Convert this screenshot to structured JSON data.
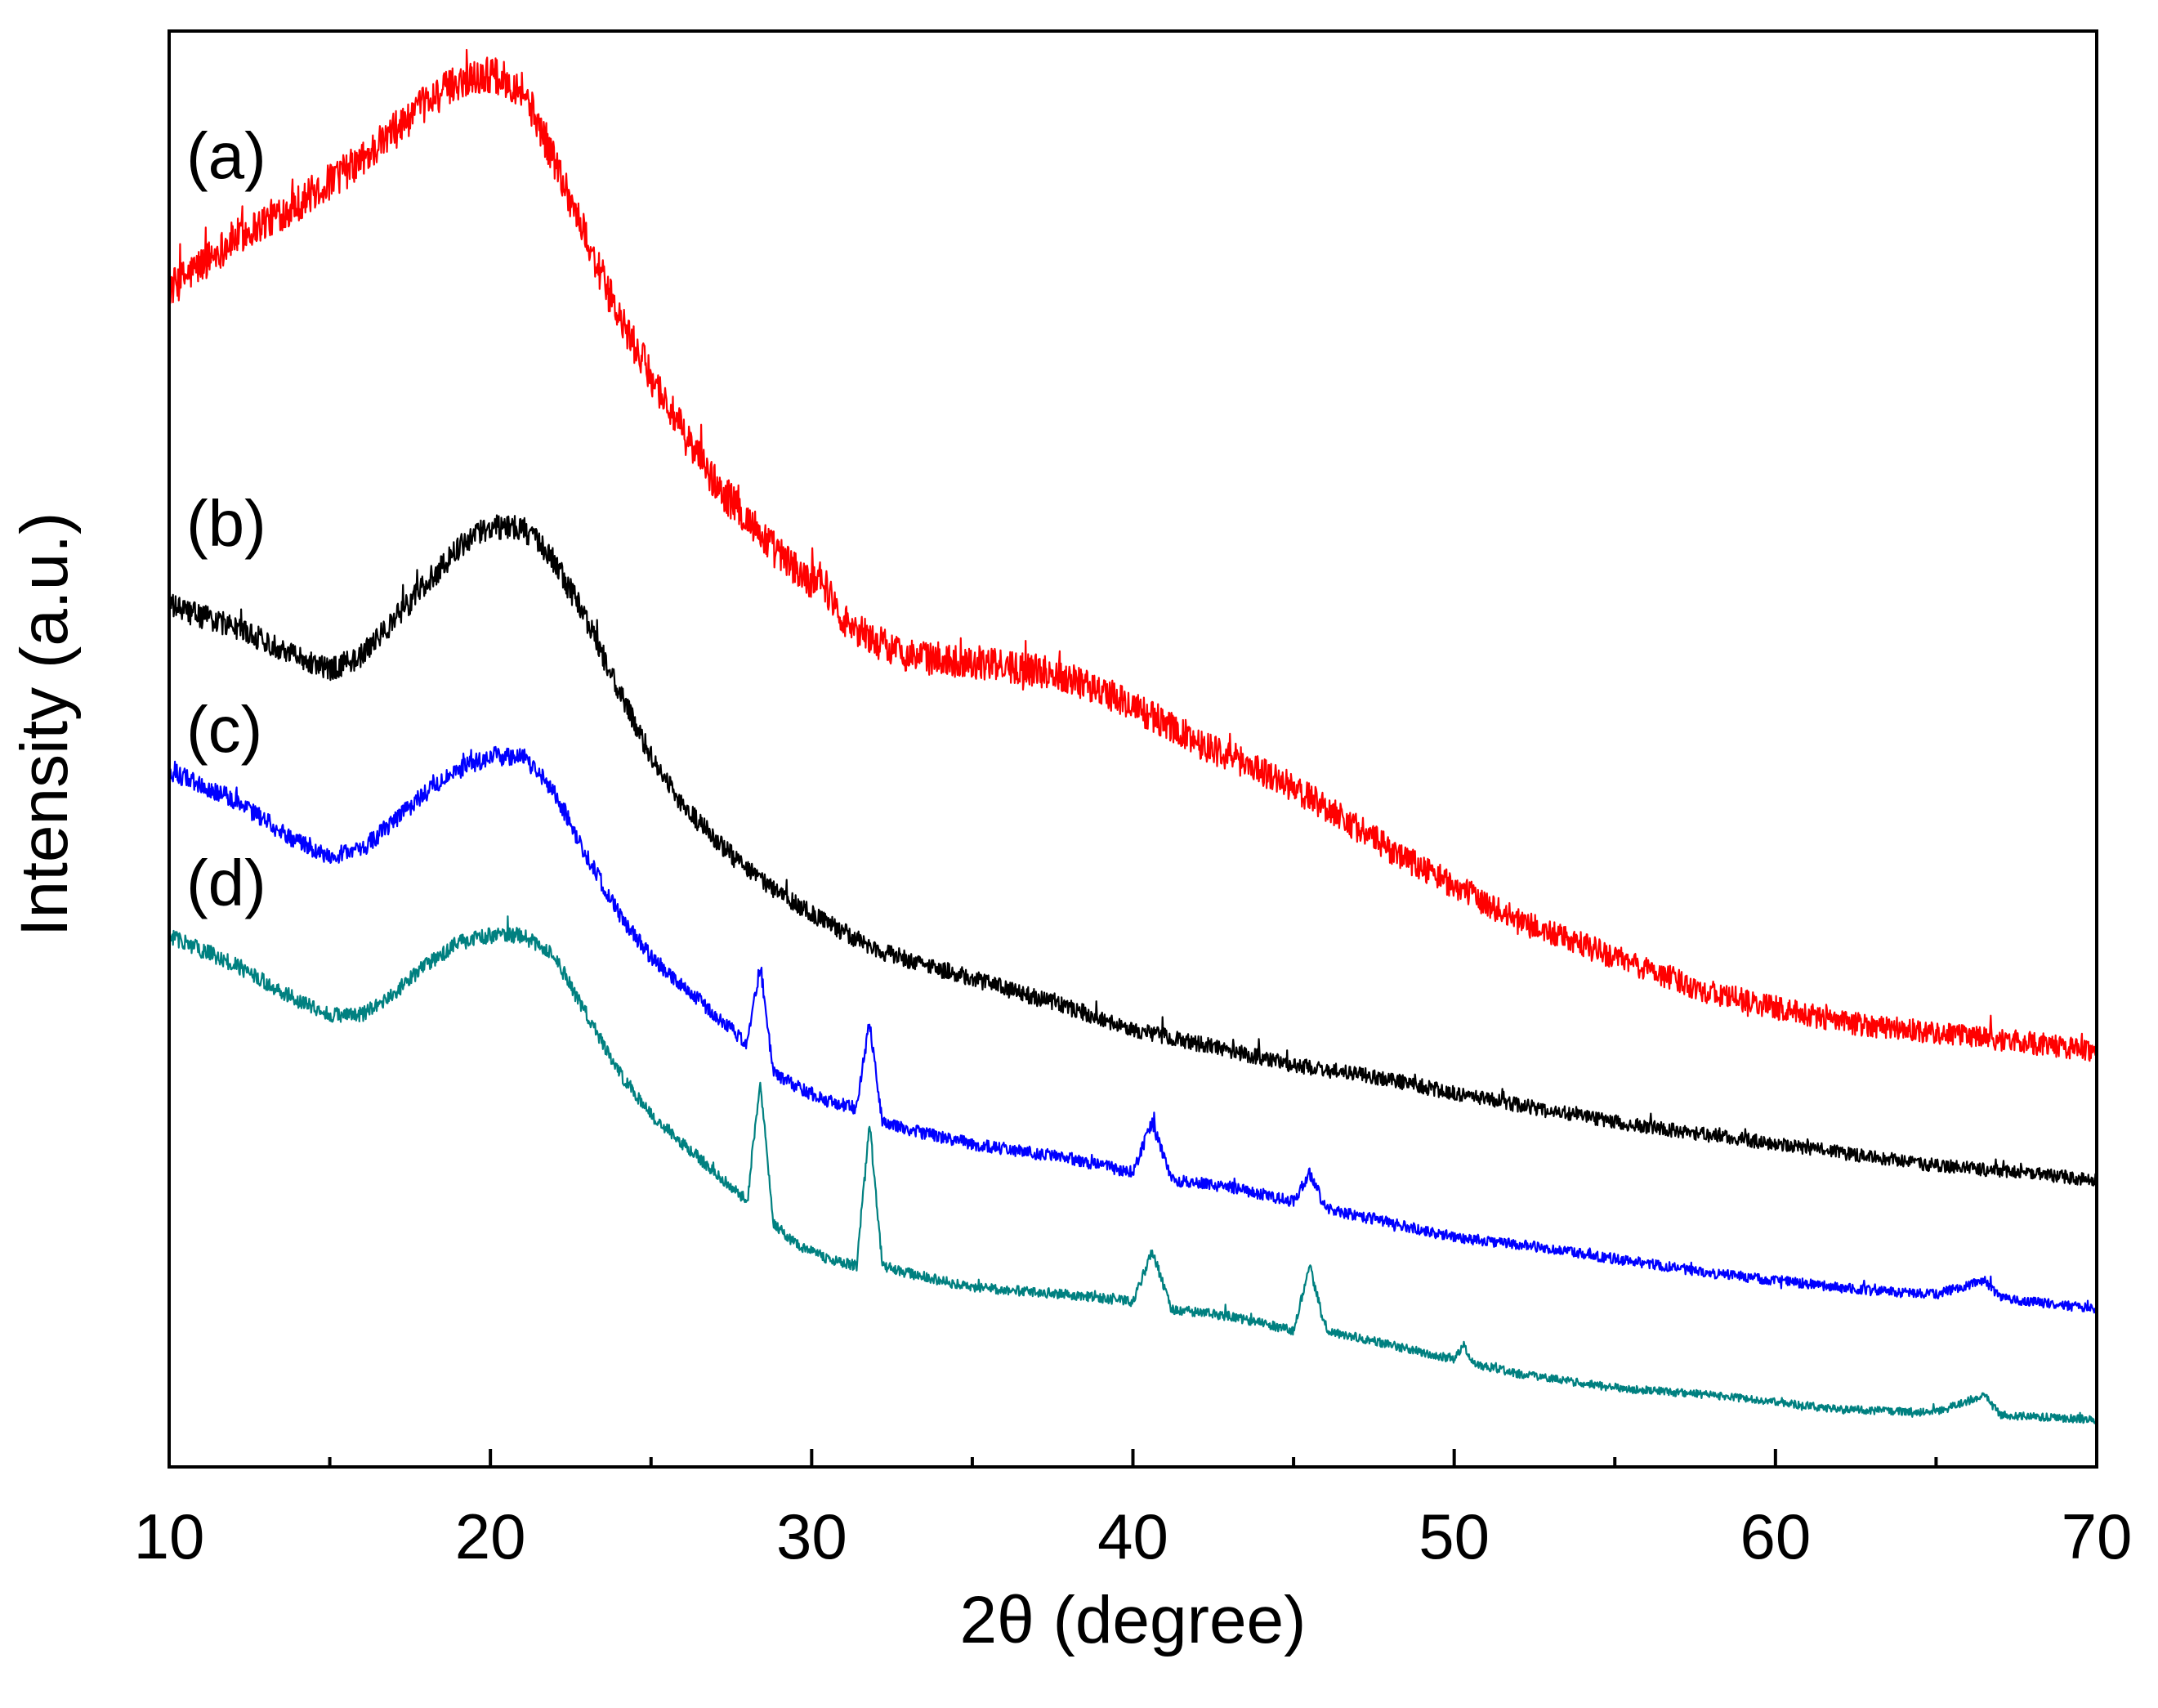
{
  "chart_data": {
    "type": "line",
    "title": "",
    "xlabel": "2θ (degree)",
    "ylabel": "Intensity (a.u.)",
    "xlim": [
      10,
      70
    ],
    "ylim": [
      0,
      100
    ],
    "xticks": [
      10,
      20,
      30,
      40,
      50,
      60,
      70
    ],
    "xtick_labels": [
      "10",
      "20",
      "30",
      "40",
      "50",
      "60",
      "70"
    ],
    "minor_xticks": [
      15,
      25,
      35,
      45,
      55,
      65
    ],
    "yticks_shown": false,
    "grid": false,
    "series": [
      {
        "name": "(a)",
        "color": "#ff0000",
        "x": [
          10,
          12,
          14,
          16,
          17,
          18,
          19,
          20,
          21,
          22,
          23,
          24,
          25,
          26,
          27,
          28,
          29,
          30,
          30.2,
          30.5,
          31,
          32,
          33,
          35,
          37,
          38,
          40,
          42,
          44,
          46,
          48,
          50,
          52,
          55,
          58,
          60,
          62,
          64,
          66,
          68,
          70
        ],
        "y": [
          82,
          85.5,
          88,
          91,
          93,
          95,
          96.5,
          97,
          96,
          91,
          85.5,
          80,
          76,
          72,
          68.5,
          66,
          63.5,
          61.5,
          62.5,
          61,
          59,
          57.5,
          56.5,
          56,
          55.5,
          55,
          53,
          50.5,
          48.5,
          46,
          43,
          40.5,
          38,
          35.5,
          33,
          32,
          31,
          30.5,
          30,
          29.5,
          29
        ]
      },
      {
        "name": "(b)",
        "color": "#000000",
        "x": [
          10,
          12,
          14,
          15,
          16,
          17,
          18,
          19,
          20,
          21,
          22,
          23,
          24,
          25,
          26,
          28,
          30,
          32,
          35,
          38,
          40,
          42,
          45,
          48,
          50,
          55,
          60,
          65,
          70
        ],
        "y": [
          60,
          58.5,
          56.5,
          55.5,
          56.5,
          59,
          61.5,
          64,
          65.5,
          65.5,
          63,
          59,
          54,
          49.5,
          46,
          41.5,
          38.5,
          36,
          34,
          32,
          30.5,
          29.5,
          28,
          27,
          26,
          24,
          22.5,
          21,
          20
        ]
      },
      {
        "name": "(c)",
        "color": "#0000ff",
        "x": [
          10,
          12,
          14,
          15,
          16,
          17,
          18,
          19,
          20,
          21,
          22,
          23,
          24,
          25,
          26,
          27,
          28,
          28.4,
          28.8,
          29.5,
          30.5,
          31.4,
          31.8,
          32.2,
          33,
          35,
          38,
          40,
          40.6,
          41.2,
          43,
          45,
          45.5,
          46,
          48,
          50,
          52,
          55,
          58,
          60,
          62,
          65,
          66.5,
          67,
          68,
          70
        ],
        "y": [
          48.5,
          46.5,
          43.5,
          42.5,
          43,
          45,
          47,
          48.5,
          49.5,
          49.5,
          47,
          42.5,
          38.5,
          35.5,
          33.5,
          31.5,
          29.5,
          35,
          27.5,
          26.5,
          25.5,
          25,
          31,
          24,
          23.5,
          22.5,
          21.5,
          20.5,
          24,
          20,
          19.5,
          18.5,
          20.5,
          18,
          17,
          16,
          15.5,
          14.5,
          13.5,
          13,
          12.5,
          12,
          13,
          11.8,
          11.5,
          11
        ]
      },
      {
        "name": "(d)",
        "color": "#008080",
        "x": [
          10,
          12,
          14,
          15,
          16,
          17,
          18,
          19,
          20,
          21,
          22,
          23,
          24,
          25,
          26,
          27,
          28,
          28.4,
          28.8,
          29.5,
          30.5,
          31.4,
          31.8,
          32.2,
          33,
          35,
          38,
          40,
          40.6,
          41.2,
          43,
          45,
          45.5,
          46,
          48,
          50,
          50.3,
          50.6,
          52,
          55,
          58,
          60,
          62,
          65,
          66.5,
          67,
          68,
          70
        ],
        "y": [
          37,
          35,
          32.5,
          31.5,
          31.5,
          33,
          35,
          36.5,
          37,
          37,
          35.5,
          31.5,
          27.5,
          24.5,
          22.5,
          20.5,
          18.5,
          27,
          17,
          15.5,
          14.5,
          14,
          24,
          14,
          13.5,
          12.5,
          12,
          11.5,
          15,
          11,
          10.5,
          9.5,
          14,
          9.5,
          8.5,
          7.5,
          8.5,
          7.2,
          6.5,
          5.5,
          5,
          4.5,
          4,
          3.8,
          5,
          3.6,
          3.5,
          3.3
        ]
      }
    ]
  }
}
